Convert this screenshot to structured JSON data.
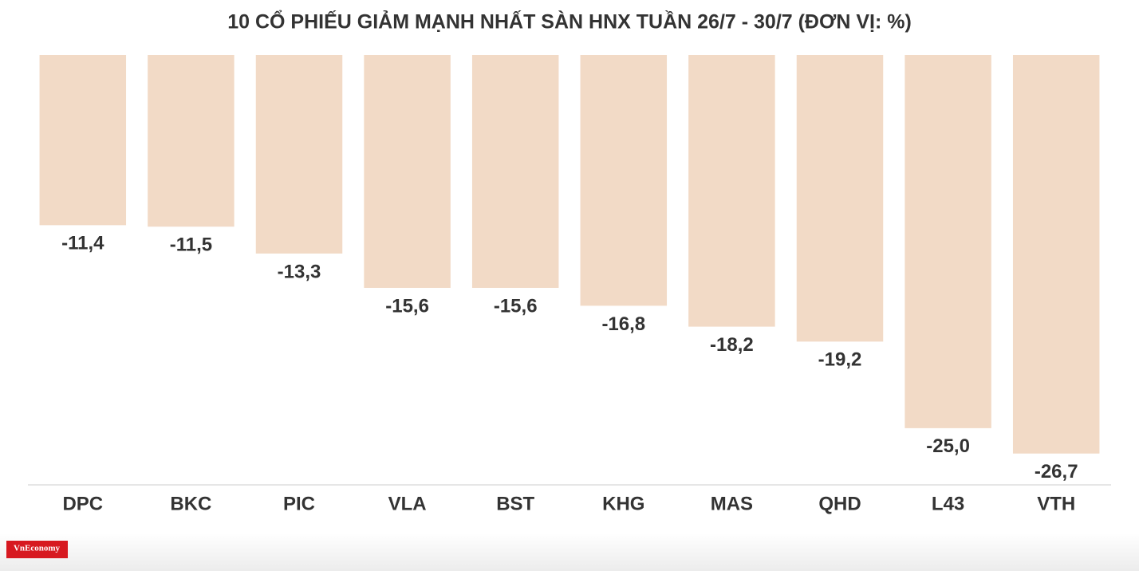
{
  "chart_data": {
    "type": "bar",
    "title": "10 CỔ PHIẾU GIẢM MẠNH NHẤT SÀN HNX TUẦN 26/7 - 30/7 (ĐƠN VỊ: %)",
    "categories": [
      "DPC",
      "BKC",
      "PIC",
      "VLA",
      "BST",
      "KHG",
      "MAS",
      "QHD",
      "L43",
      "VTH"
    ],
    "values": [
      -11.4,
      -11.5,
      -13.3,
      -15.6,
      -15.6,
      -16.8,
      -18.2,
      -19.2,
      -25.0,
      -26.7
    ],
    "value_labels": [
      "-11,4",
      "-11,5",
      "-13,3",
      "-15,6",
      "-15,6",
      "-16,8",
      "-18,2",
      "-19,2",
      "-25,0",
      "-26,7"
    ],
    "color": "#f2dac6",
    "ylim": [
      -28.8,
      0
    ],
    "grid": false
  },
  "logo": "VnEconomy"
}
